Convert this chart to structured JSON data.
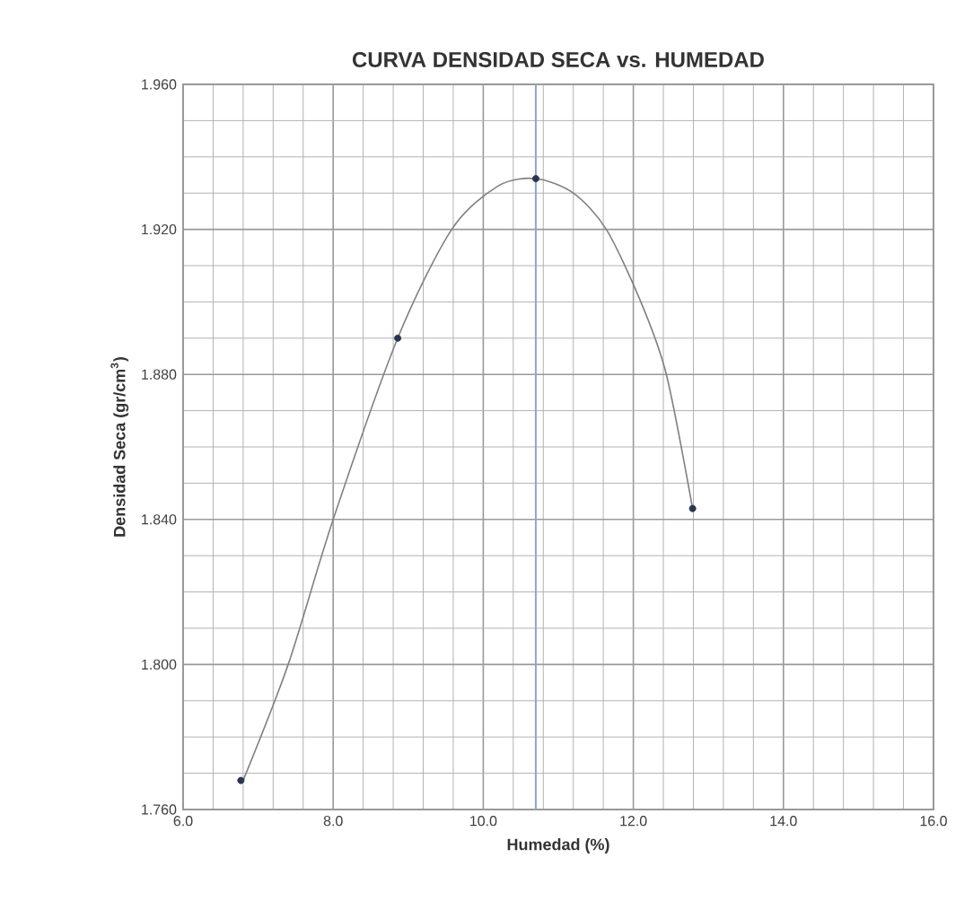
{
  "chart_data": {
    "type": "scatter",
    "title": "CURVA DENSIDAD SECA vs. HUMEDAD",
    "xlabel": "Humedad (%)",
    "ylabel": "Densidad  Seca (gr/cm$^{3}$)",
    "xlim": [
      6.0,
      16.0
    ],
    "ylim": [
      1.76,
      1.96
    ],
    "xticks": [
      {
        "value": 6,
        "label": "6.0"
      },
      {
        "value": 8,
        "label": "8.0"
      },
      {
        "value": 10,
        "label": "10.0"
      },
      {
        "value": 12,
        "label": "12.0"
      },
      {
        "value": 14,
        "label": "14.0"
      },
      {
        "value": 16,
        "label": "16.0"
      }
    ],
    "yticks": [
      {
        "value": 1.76,
        "label": "1.760"
      },
      {
        "value": 1.8,
        "label": "1.800"
      },
      {
        "value": 1.84,
        "label": "1.840"
      },
      {
        "value": 1.88,
        "label": "1.880"
      },
      {
        "value": 1.92,
        "label": "1.920"
      },
      {
        "value": 1.96,
        "label": "1.960"
      }
    ],
    "grid": true,
    "series": [
      {
        "type": "line",
        "color": "#808080",
        "marker": "none",
        "x": [
          6.8,
          7.4,
          8.0,
          8.86,
          9.58,
          10.2,
          10.7,
          11.2,
          11.64,
          12.1,
          12.44,
          12.79
        ],
        "values": [
          1.768,
          1.8,
          1.84,
          1.89,
          1.92,
          1.932,
          1.934,
          1.93,
          1.92,
          1.9,
          1.88,
          1.843
        ]
      },
      {
        "color": "#2a3550",
        "marker": "circle",
        "x": [
          6.77,
          8.86,
          10.7,
          12.79
        ],
        "values": [
          1.768,
          1.89,
          1.934,
          1.843
        ]
      }
    ],
    "ref_lines": [
      {
        "axis": "x",
        "value": 10.7,
        "color": "#8fa6c8"
      }
    ]
  }
}
